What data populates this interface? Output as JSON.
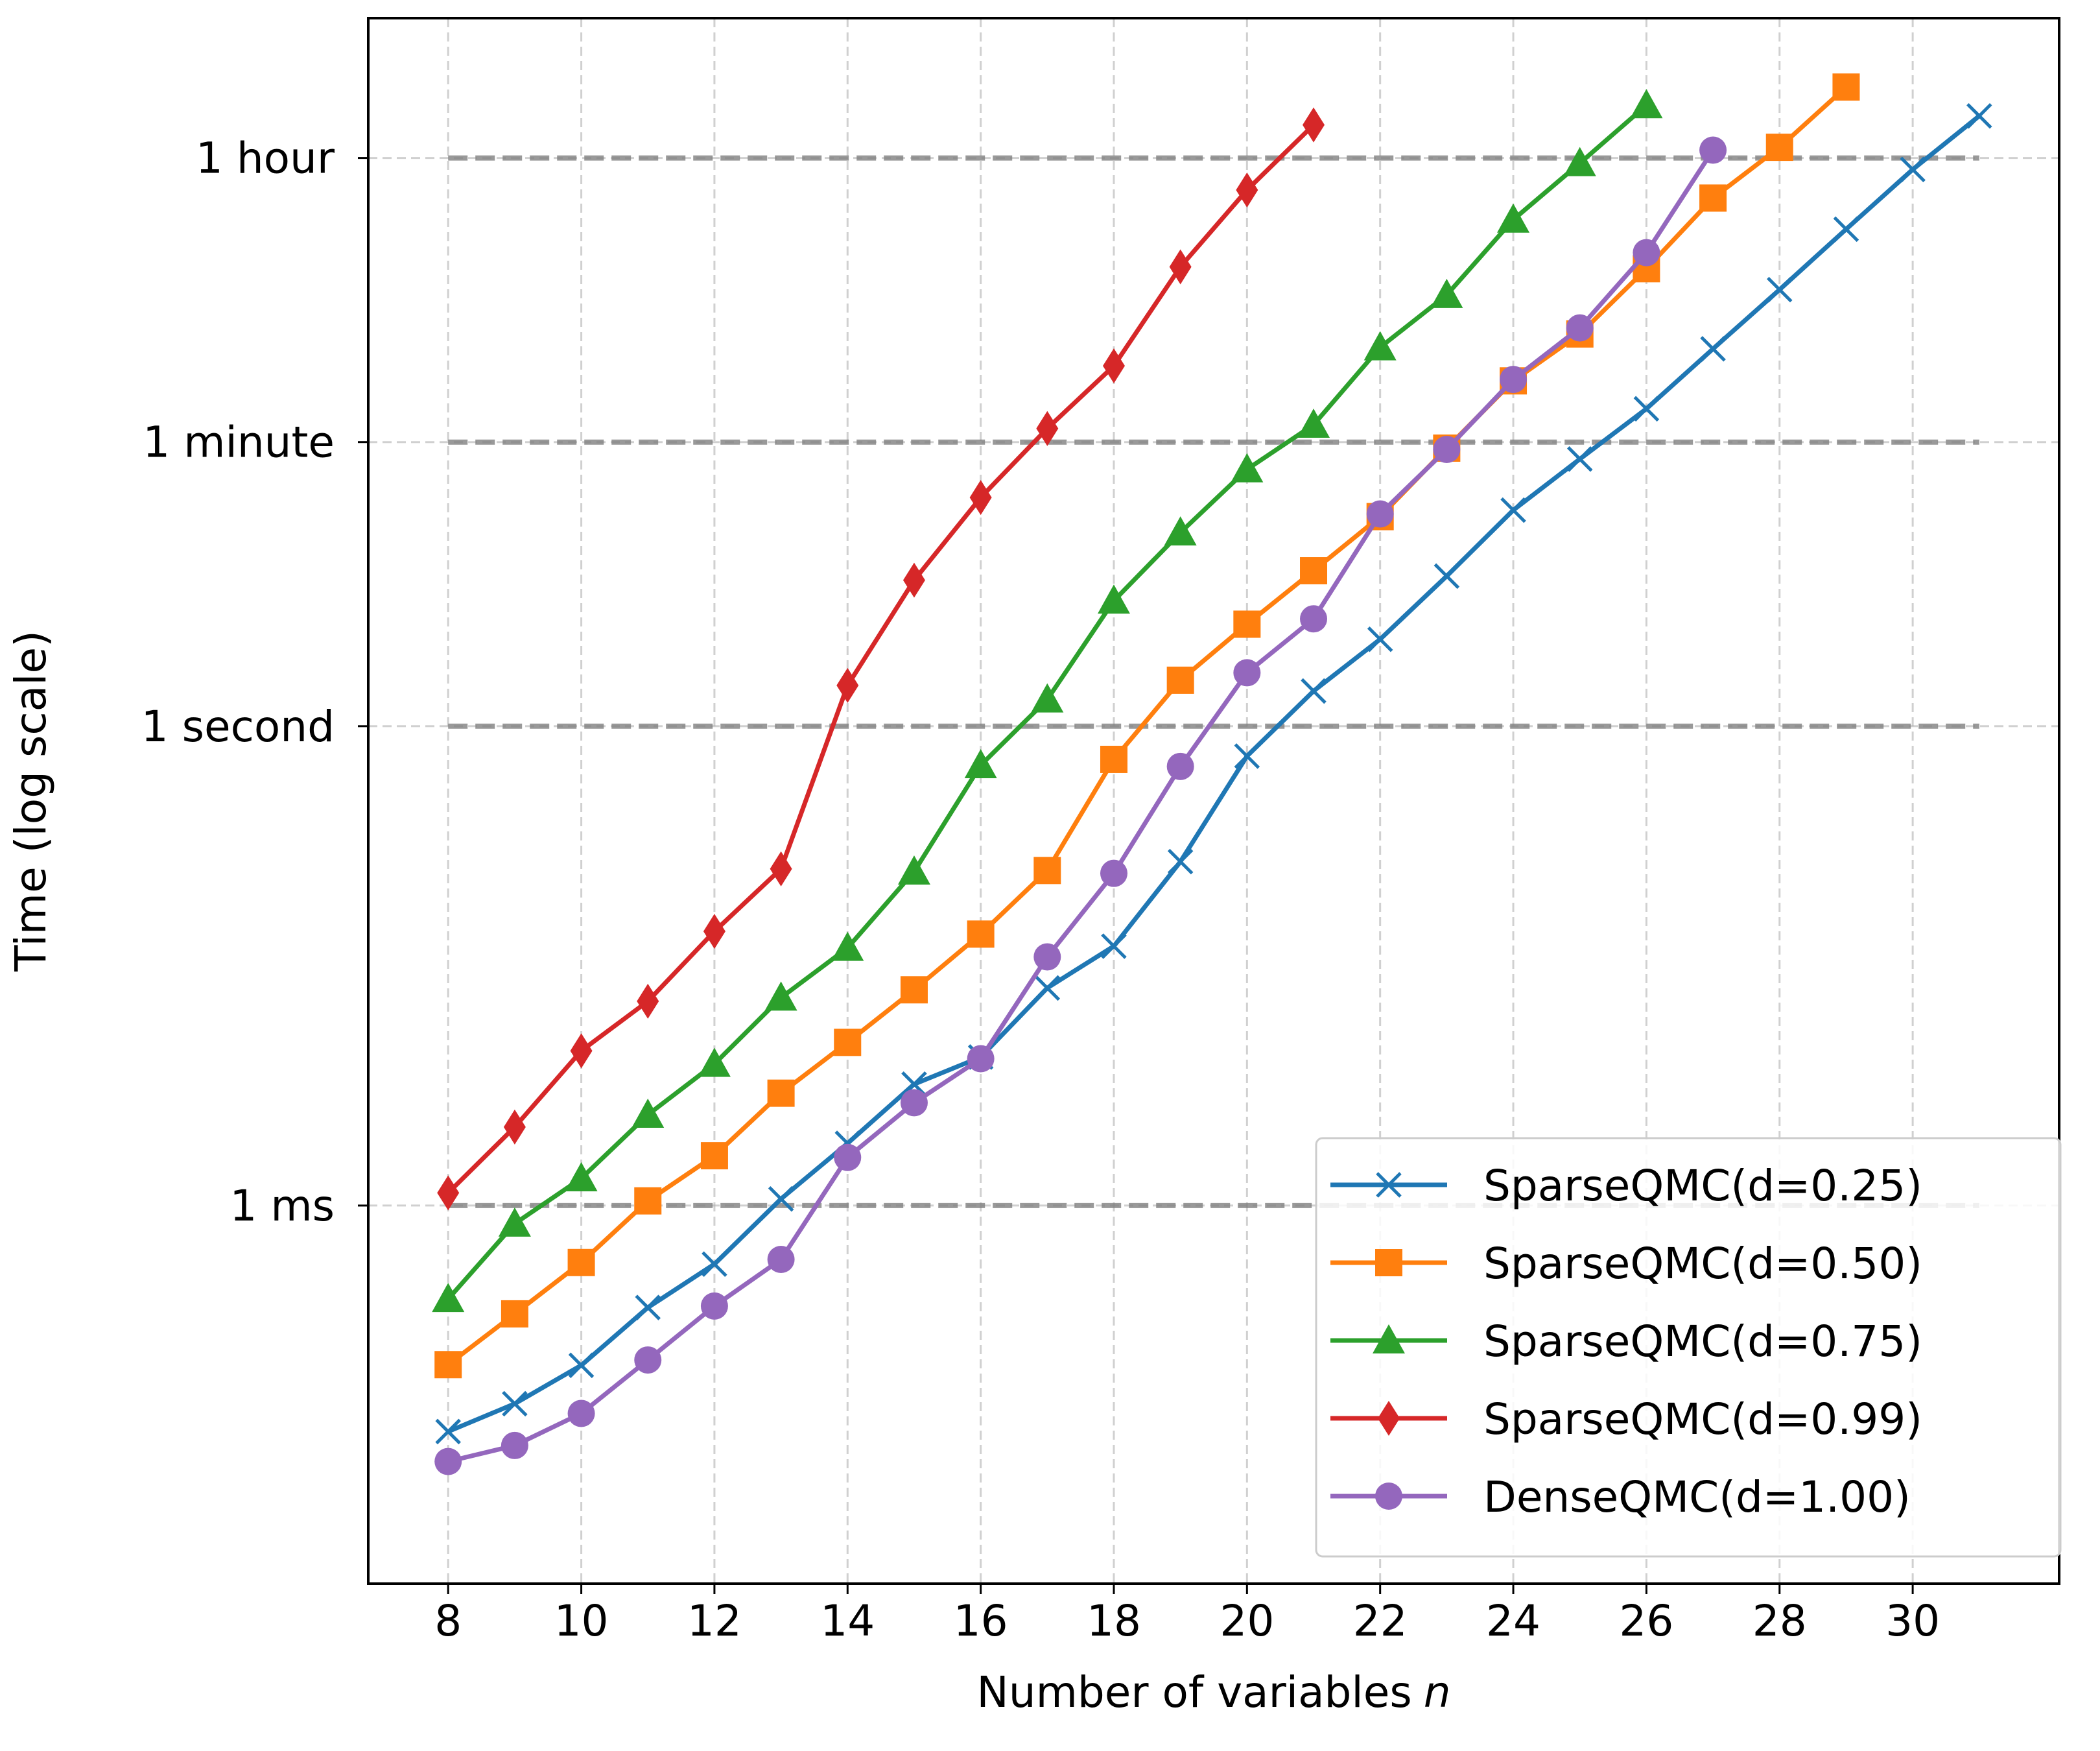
{
  "chart_data": {
    "type": "line",
    "title": "",
    "xlabel": "Number of variables",
    "xlabel_var": "n",
    "ylabel": "Time (log scale)",
    "y_scale": "log",
    "y_unit": "seconds",
    "xlim": [
      6.8,
      32.2
    ],
    "ylim": [
      4.3e-06,
      27000
    ],
    "grid": true,
    "x_ticks": [
      8,
      10,
      12,
      14,
      16,
      18,
      20,
      22,
      24,
      26,
      28,
      30
    ],
    "y_ticks": [
      {
        "value": 0.001,
        "label": "1 ms"
      },
      {
        "value": 1,
        "label": "1 second"
      },
      {
        "value": 60,
        "label": "1 minute"
      },
      {
        "value": 3600,
        "label": "1 hour"
      }
    ],
    "reference_lines": [
      0.001,
      1,
      60,
      3600
    ],
    "legend": "lower-right",
    "series": [
      {
        "name": "SparseQMC(d=0.25)",
        "color": "#1f77b4",
        "marker": "x",
        "x": [
          8,
          9,
          10,
          11,
          12,
          13,
          14,
          15,
          16,
          17,
          18,
          19,
          20,
          21,
          22,
          23,
          24,
          25,
          26,
          27,
          28,
          29,
          30,
          31
        ],
        "y": [
          3.85e-05,
          5.75e-05,
          0.0001,
          0.00023,
          0.00043,
          0.0011,
          0.00245,
          0.00575,
          0.0085,
          0.023,
          0.042,
          0.142,
          0.65,
          1.66,
          3.5,
          8.7,
          22.5,
          47,
          97,
          230,
          540,
          1290,
          3050,
          6600
        ]
      },
      {
        "name": "SparseQMC(d=0.50)",
        "color": "#ff7f0e",
        "marker": "square",
        "x": [
          8,
          9,
          10,
          11,
          12,
          13,
          14,
          15,
          16,
          17,
          18,
          19,
          20,
          21,
          22,
          23,
          24,
          25,
          26,
          27,
          28,
          29
        ],
        "y": [
          0.000101,
          0.00021,
          0.00044,
          0.00107,
          0.00205,
          0.00505,
          0.0105,
          0.0224,
          0.05,
          0.125,
          0.62,
          1.94,
          4.35,
          9.4,
          20.5,
          55,
          145,
          285,
          730,
          2020,
          4200,
          10000
        ]
      },
      {
        "name": "SparseQMC(d=0.75)",
        "color": "#2ca02c",
        "marker": "triangle",
        "x": [
          8,
          9,
          10,
          11,
          12,
          13,
          14,
          15,
          16,
          17,
          18,
          19,
          20,
          21,
          22,
          23,
          24,
          25,
          26
        ],
        "y": [
          0.00026,
          0.00077,
          0.00148,
          0.0037,
          0.0077,
          0.02,
          0.041,
          0.123,
          0.57,
          1.47,
          6.1,
          16.3,
          40.5,
          77,
          235,
          500,
          1480,
          3340,
          7700
        ]
      },
      {
        "name": "SparseQMC(d=0.99)",
        "color": "#d62728",
        "marker": "diamond",
        "x": [
          8,
          9,
          10,
          11,
          12,
          13,
          14,
          15,
          16,
          17,
          18,
          19,
          20,
          21
        ],
        "y": [
          0.0012,
          0.0031,
          0.0093,
          0.019,
          0.052,
          0.128,
          1.8,
          8.2,
          27,
          73,
          180,
          750,
          2270,
          5800
        ]
      },
      {
        "name": "DenseQMC(d=1.00)",
        "color": "#9467bd",
        "marker": "circle",
        "x": [
          8,
          9,
          10,
          11,
          12,
          13,
          14,
          15,
          16,
          17,
          18,
          19,
          20,
          21,
          22,
          23,
          24,
          25,
          26,
          27
        ],
        "y": [
          2.5e-05,
          3.15e-05,
          5e-05,
          0.000108,
          0.000235,
          0.00046,
          0.002,
          0.0044,
          0.0083,
          0.036,
          0.12,
          0.56,
          2.16,
          4.7,
          21.3,
          54,
          148,
          311,
          920,
          4030
        ]
      }
    ]
  }
}
